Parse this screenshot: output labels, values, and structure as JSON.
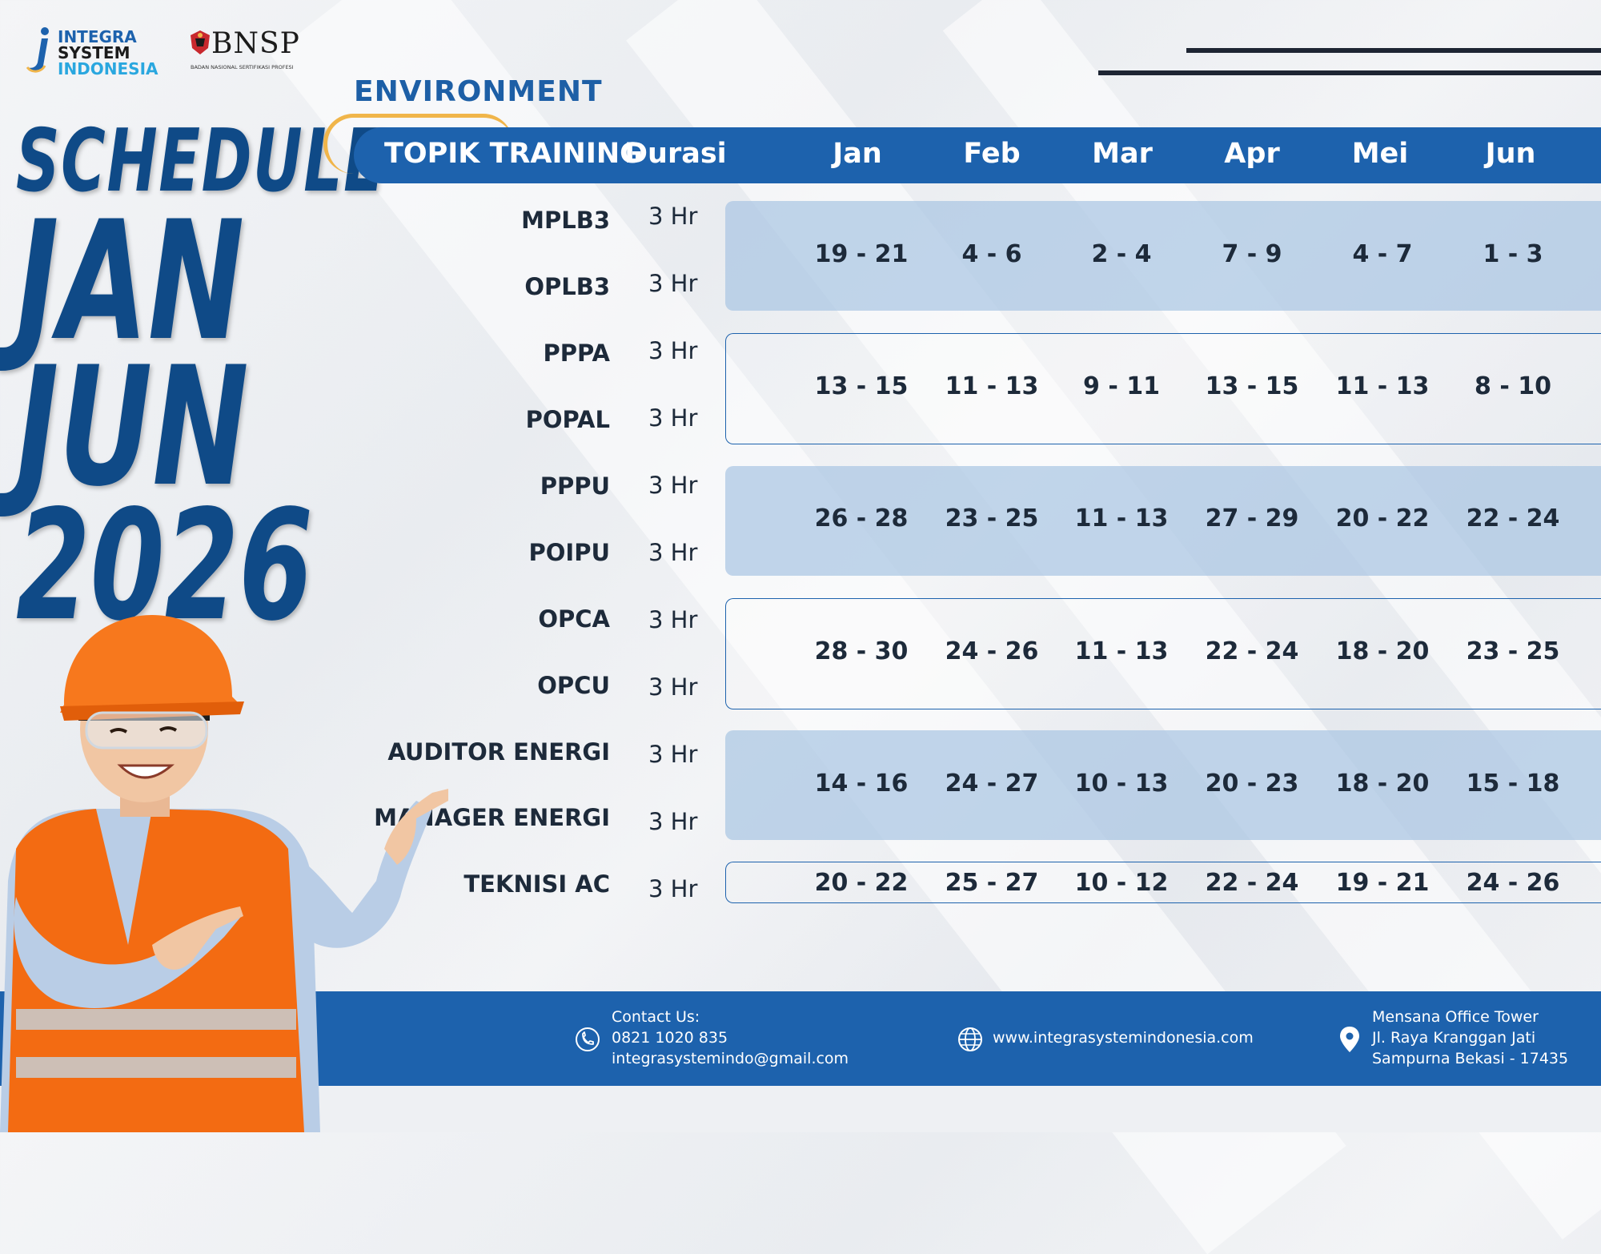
{
  "brand": {
    "integra_lines": [
      "INTEGRA",
      "SYSTEM",
      "INDONESIA"
    ],
    "bnsp_word": "BNSP",
    "bnsp_sub": "BADAN NASIONAL SERTIFIKASI PROFESI"
  },
  "category": "ENVIRONMENT",
  "headline": {
    "schedule": "SCHEDULE",
    "line1": "JAN",
    "line2": "JUN",
    "year": "2026"
  },
  "table": {
    "header": {
      "topic": "TOPIK TRAINING",
      "duration": "Durasi",
      "months": [
        "Jan",
        "Feb",
        "Mar",
        "Apr",
        "Mei",
        "Jun"
      ]
    },
    "rows": [
      {
        "topic": "MPLB3",
        "duration": "3 Hr"
      },
      {
        "topic": "OPLB3",
        "duration": "3 Hr"
      },
      {
        "topic": "PPPA",
        "duration": "3 Hr"
      },
      {
        "topic": "POPAL",
        "duration": "3 Hr"
      },
      {
        "topic": "PPPU",
        "duration": "3 Hr"
      },
      {
        "topic": "POIPU",
        "duration": "3 Hr"
      },
      {
        "topic": "OPCA",
        "duration": "3 Hr"
      },
      {
        "topic": "OPCU",
        "duration": "3 Hr"
      },
      {
        "topic": "AUDITOR ENERGI",
        "duration": "3 Hr"
      },
      {
        "topic": "MANAGER ENERGI",
        "duration": "3 Hr"
      },
      {
        "topic": "TEKNISI AC",
        "duration": "3 Hr"
      }
    ],
    "groups": [
      {
        "dates": [
          "19 - 21",
          "4 - 6",
          "2 - 4",
          "7 - 9",
          "4 - 7",
          "1 - 3"
        ]
      },
      {
        "dates": [
          "13 - 15",
          "11 - 13",
          "9 - 11",
          "13 - 15",
          "11 - 13",
          "8 - 10"
        ]
      },
      {
        "dates": [
          "26 - 28",
          "23 - 25",
          "11 - 13",
          "27 - 29",
          "20 - 22",
          "22 - 24"
        ]
      },
      {
        "dates": [
          "28 - 30",
          "24 - 26",
          "11 - 13",
          "22 - 24",
          "18 - 20",
          "23 - 25"
        ]
      },
      {
        "dates": [
          "14 - 16",
          "24 - 27",
          "10 - 13",
          "20 - 23",
          "18 - 20",
          "15 - 18"
        ]
      },
      {
        "dates": [
          "20 - 22",
          "25 - 27",
          "10 - 12",
          "22 - 24",
          "19 - 21",
          "24 - 26"
        ]
      }
    ]
  },
  "footer": {
    "contact_label": "Contact Us:",
    "phone": "0821 1020 835",
    "email": "integrasystemindo@gmail.com",
    "website": "www.integrasystemindonesia.com",
    "address": [
      "Mensana Office Tower",
      "Jl. Raya Kranggan Jati",
      "Sampurna Bekasi - 17435"
    ]
  },
  "icons": {
    "phone": "phone-icon",
    "website": "globe-icon",
    "address": "location-pin-icon"
  },
  "colors": {
    "primary_blue": "#1d62ad",
    "headline_navy": "#0f4a87",
    "accent_orange": "#f0b54a",
    "row_fill": "#a8c5e3"
  }
}
